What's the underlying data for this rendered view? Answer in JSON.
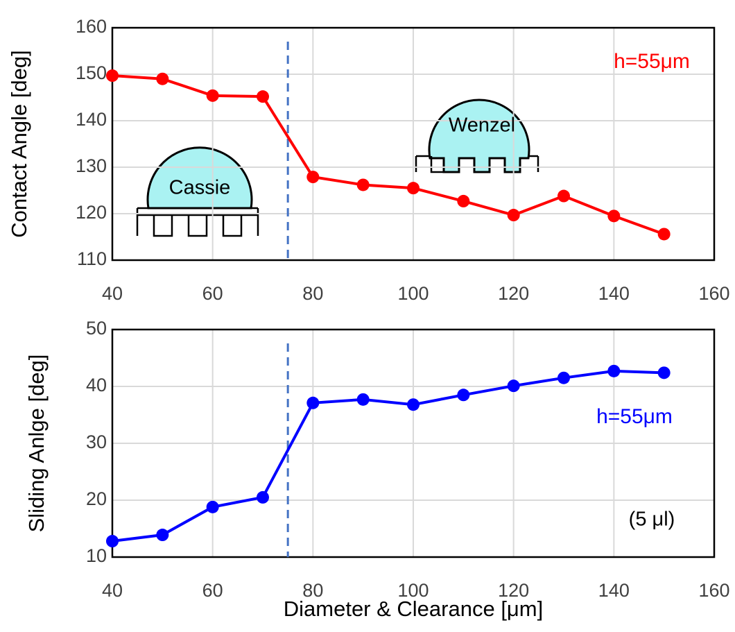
{
  "chart_data": [
    {
      "type": "line",
      "ylabel": "Contact Angle [deg]",
      "x": [
        40,
        50,
        60,
        70,
        80,
        90,
        100,
        110,
        120,
        130,
        140,
        150
      ],
      "series": [
        {
          "name": "h=55μm",
          "color": "#ff0000",
          "values": [
            149.7,
            149,
            145.4,
            145.2,
            127.9,
            126.2,
            125.5,
            122.7,
            119.7,
            123.8,
            119.5,
            115.6
          ]
        }
      ],
      "xlim": [
        40,
        160
      ],
      "xticks": [
        40,
        60,
        80,
        100,
        120,
        140,
        160
      ],
      "ylim": [
        110,
        160
      ],
      "yticks": [
        110,
        120,
        130,
        140,
        150,
        160
      ],
      "vline": 75,
      "grid": true,
      "annotations": [
        "Cassie",
        "Wenzel"
      ]
    },
    {
      "type": "line",
      "ylabel": "Sliding Anlge [deg]",
      "xlabel": "Diameter & Clearance [μm]",
      "x": [
        40,
        50,
        60,
        70,
        80,
        90,
        100,
        110,
        120,
        130,
        140,
        150
      ],
      "series": [
        {
          "name": "h=55μm",
          "color": "#0000ff",
          "values": [
            12.8,
            13.9,
            18.8,
            20.5,
            37.1,
            37.7,
            36.8,
            38.5,
            40.1,
            41.5,
            42.7,
            42.4
          ]
        }
      ],
      "xlim": [
        40,
        160
      ],
      "xticks": [
        40,
        60,
        80,
        100,
        120,
        140,
        160
      ],
      "ylim": [
        10,
        50
      ],
      "yticks": [
        10,
        20,
        30,
        40,
        50
      ],
      "vline": 75,
      "grid": true,
      "annotations": [
        "(5 μl)"
      ]
    }
  ]
}
